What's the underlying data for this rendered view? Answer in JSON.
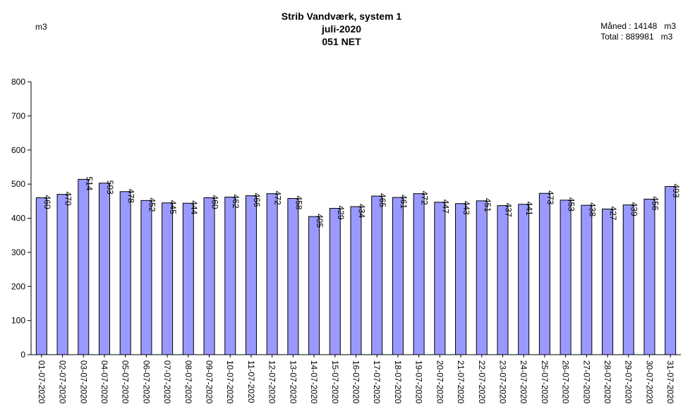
{
  "header": {
    "title_line1": "Strib Vandværk, system 1",
    "title_line2": "juli-2020",
    "title_line3": "051 NET",
    "unit": "m3",
    "month_label": "Måned :",
    "month_value": "14148",
    "month_unit": "m3",
    "total_label": "Total :",
    "total_value": "889981",
    "total_unit": "m3"
  },
  "chart_data": {
    "type": "bar",
    "title": "Strib Vandværk, system 1",
    "ylabel": "m3",
    "ylim": [
      0,
      800
    ],
    "yticks": [
      0,
      100,
      200,
      300,
      400,
      500,
      600,
      700,
      800
    ],
    "bar_color": "#9999ff",
    "grid": false,
    "categories": [
      "01-07-2020",
      "02-07-2020",
      "03-07-2020",
      "04-07-2020",
      "05-07-2020",
      "06-07-2020",
      "07-07-2020",
      "08-07-2020",
      "09-07-2020",
      "10-07-2020",
      "11-07-2020",
      "12-07-2020",
      "13-07-2020",
      "14-07-2020",
      "15-07-2020",
      "16-07-2020",
      "17-07-2020",
      "18-07-2020",
      "19-07-2020",
      "20-07-2020",
      "21-07-2020",
      "22-07-2020",
      "23-07-2020",
      "24-07-2020",
      "25-07-2020",
      "26-07-2020",
      "27-07-2020",
      "28-07-2020",
      "29-07-2020",
      "30-07-2020",
      "31-07-2020"
    ],
    "values": [
      460,
      470,
      514,
      503,
      478,
      452,
      445,
      444,
      460,
      462,
      466,
      472,
      458,
      405,
      429,
      434,
      465,
      461,
      472,
      447,
      443,
      451,
      437,
      441,
      473,
      453,
      438,
      427,
      439,
      456,
      493
    ]
  }
}
